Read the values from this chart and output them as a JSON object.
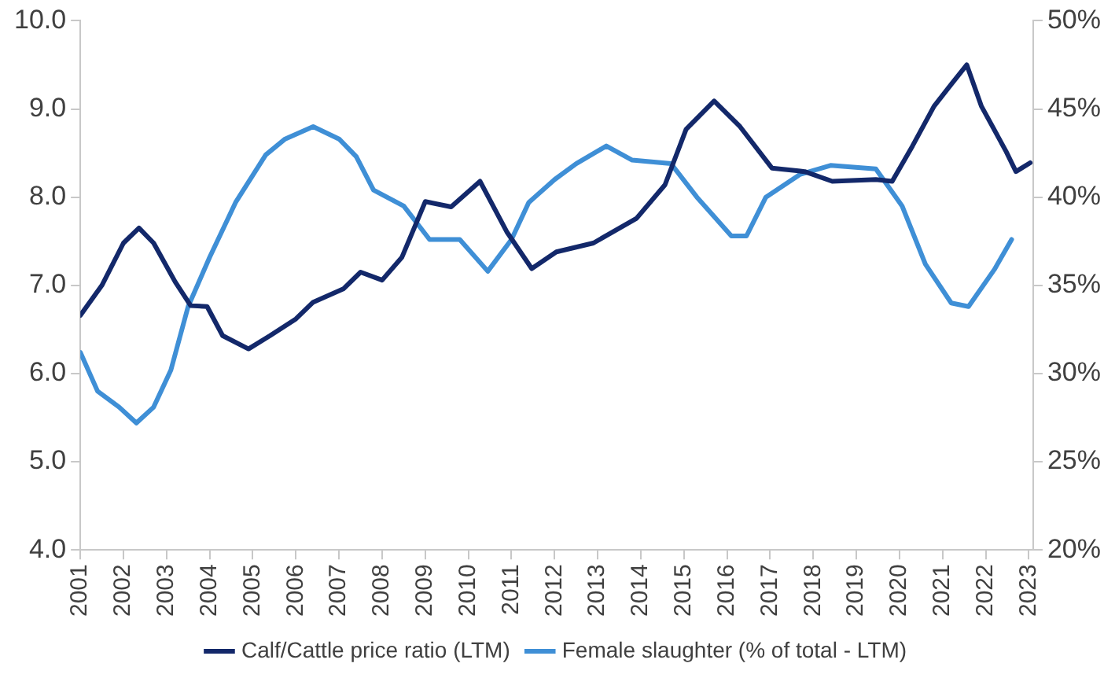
{
  "chart_data": {
    "type": "line",
    "legend": "bottom",
    "grid": false,
    "marker": "none",
    "line_style": "solid",
    "xlim": [
      2001,
      2023.1
    ],
    "xticks": [
      2001,
      2002,
      2003,
      2004,
      2005,
      2006,
      2007,
      2008,
      2009,
      2010,
      2011,
      2012,
      2013,
      2014,
      2015,
      2016,
      2017,
      2018,
      2019,
      2020,
      2021,
      2022,
      2023
    ],
    "ylim": [
      4,
      10
    ],
    "yticks": [
      {
        "value": 4,
        "label": "4.0"
      },
      {
        "value": 5,
        "label": "5.0"
      },
      {
        "value": 6,
        "label": "6.0"
      },
      {
        "value": 7,
        "label": "7.0"
      },
      {
        "value": 8,
        "label": "8.0"
      },
      {
        "value": 9,
        "label": "9.0"
      },
      {
        "value": 10,
        "label": "10.0"
      }
    ],
    "y2lim": [
      20,
      50
    ],
    "y2ticks": [
      {
        "value": 20,
        "label": "20%"
      },
      {
        "value": 25,
        "label": "25%"
      },
      {
        "value": 30,
        "label": "30%"
      },
      {
        "value": 35,
        "label": "35%"
      },
      {
        "value": 40,
        "label": "40%"
      },
      {
        "value": 45,
        "label": "45%"
      },
      {
        "value": 50,
        "label": "50%"
      }
    ],
    "series": [
      {
        "name": "Calf/Cattle price ratio (LTM)",
        "color": "#13286a",
        "x": [
          2001.0,
          2001.5,
          2002.0,
          2002.36,
          2002.7,
          2003.2,
          2003.56,
          2003.94,
          2004.3,
          2004.9,
          2005.4,
          2006.0,
          2006.4,
          2007.1,
          2007.5,
          2008.0,
          2008.46,
          2009.0,
          2009.6,
          2010.27,
          2010.9,
          2011.47,
          2012.04,
          2012.9,
          2013.9,
          2014.56,
          2015.05,
          2015.7,
          2016.3,
          2017.04,
          2017.8,
          2018.44,
          2019.45,
          2019.83,
          2020.3,
          2020.8,
          2021.2,
          2021.56,
          2021.9,
          2022.47,
          2022.7,
          2023.03
        ],
        "values": [
          6.66,
          7.0,
          7.48,
          7.65,
          7.48,
          7.04,
          6.77,
          6.76,
          6.43,
          6.28,
          6.43,
          6.62,
          6.81,
          6.96,
          7.15,
          7.06,
          7.32,
          7.95,
          7.89,
          8.18,
          7.6,
          7.19,
          7.38,
          7.48,
          7.76,
          8.14,
          8.77,
          9.09,
          8.8,
          8.33,
          8.29,
          8.18,
          8.2,
          8.18,
          8.58,
          9.03,
          9.28,
          9.5,
          9.03,
          8.52,
          8.29,
          8.39
        ]
      },
      {
        "name": "Female slaughter (% of total - LTM)",
        "color": "#3f8fd6",
        "axis": "y2",
        "x": [
          2001.0,
          2001.4,
          2001.9,
          2002.3,
          2002.7,
          2003.1,
          2003.5,
          2004.0,
          2004.6,
          2005.3,
          2005.75,
          2006.4,
          2007.0,
          2007.4,
          2007.8,
          2008.5,
          2009.1,
          2009.8,
          2010.45,
          2011.0,
          2011.4,
          2012.0,
          2012.5,
          2013.2,
          2013.8,
          2014.7,
          2015.3,
          2016.1,
          2016.45,
          2016.9,
          2017.7,
          2018.4,
          2019.45,
          2020.06,
          2020.6,
          2021.2,
          2021.6,
          2022.2,
          2022.6
        ],
        "values": [
          31.2,
          29.0,
          28.1,
          27.2,
          28.1,
          30.2,
          33.8,
          36.6,
          39.7,
          42.4,
          43.3,
          44.0,
          43.3,
          42.3,
          40.4,
          39.5,
          37.6,
          37.6,
          35.8,
          37.6,
          39.7,
          41.0,
          41.9,
          42.9,
          42.1,
          41.9,
          40.0,
          37.8,
          37.8,
          40.0,
          41.3,
          41.8,
          41.6,
          39.5,
          36.2,
          34.0,
          33.8,
          35.9,
          37.6
        ]
      }
    ]
  }
}
